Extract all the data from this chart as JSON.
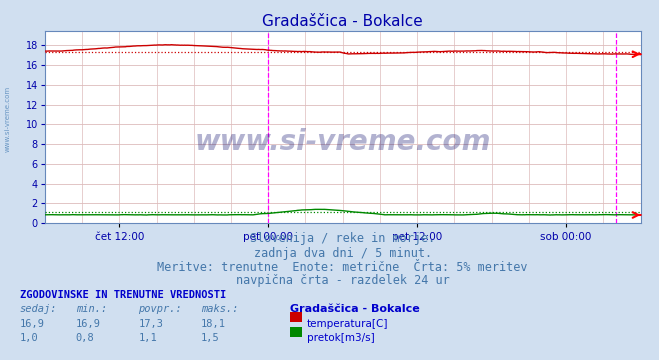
{
  "title": "Gradaščica - Bokalce",
  "title_color": "#0000aa",
  "title_fontsize": 11,
  "bg_color": "#d0dff0",
  "plot_bg_color": "#ffffff",
  "x_tick_labels": [
    "čet 12:00",
    "pet 00:00",
    "pet 12:00",
    "sob 00:00"
  ],
  "x_tick_positions": [
    0.125,
    0.375,
    0.625,
    0.875
  ],
  "y_ticks": [
    0,
    2,
    4,
    6,
    8,
    10,
    12,
    14,
    16,
    18
  ],
  "ylim": [
    0,
    19.5
  ],
  "grid_color": "#ddbbbb",
  "temp_color": "#cc0000",
  "pretok_color": "#008800",
  "vline_color": "#ff00ff",
  "vline_positions": [
    0.375,
    0.9583
  ],
  "temp_mean": 17.3,
  "pretok_mean": 1.1,
  "tick_color": "#0000aa",
  "footer_lines": [
    "Slovenija / reke in morje.",
    "zadnja dva dni / 5 minut.",
    "Meritve: trenutne  Enote: metrične  Črta: 5% meritev",
    "navpična črta - razdelek 24 ur"
  ],
  "footer_color": "#4477aa",
  "footer_fontsize": 8.5,
  "table_title": "ZGODOVINSKE IN TRENUTNE VREDNOSTI",
  "table_headers": [
    "sedaj:",
    "min.:",
    "povpr.:",
    "maks.:"
  ],
  "table_temp": [
    "16,9",
    "16,9",
    "17,3",
    "18,1"
  ],
  "table_pretok": [
    "1,0",
    "0,8",
    "1,1",
    "1,5"
  ],
  "legend_title": "Gradaščica - Bokalce",
  "legend_temp_label": "temperatura[C]",
  "legend_pretok_label": "pretok[m3/s]",
  "table_header_color": "#4477aa",
  "table_value_color": "#4477aa",
  "table_title_color": "#0000cc",
  "legend_title_color": "#0000cc",
  "watermark": "www.si-vreme.com",
  "watermark_color": "#000066",
  "sidebar_text": "www.si-vreme.com",
  "sidebar_color": "#5588bb"
}
